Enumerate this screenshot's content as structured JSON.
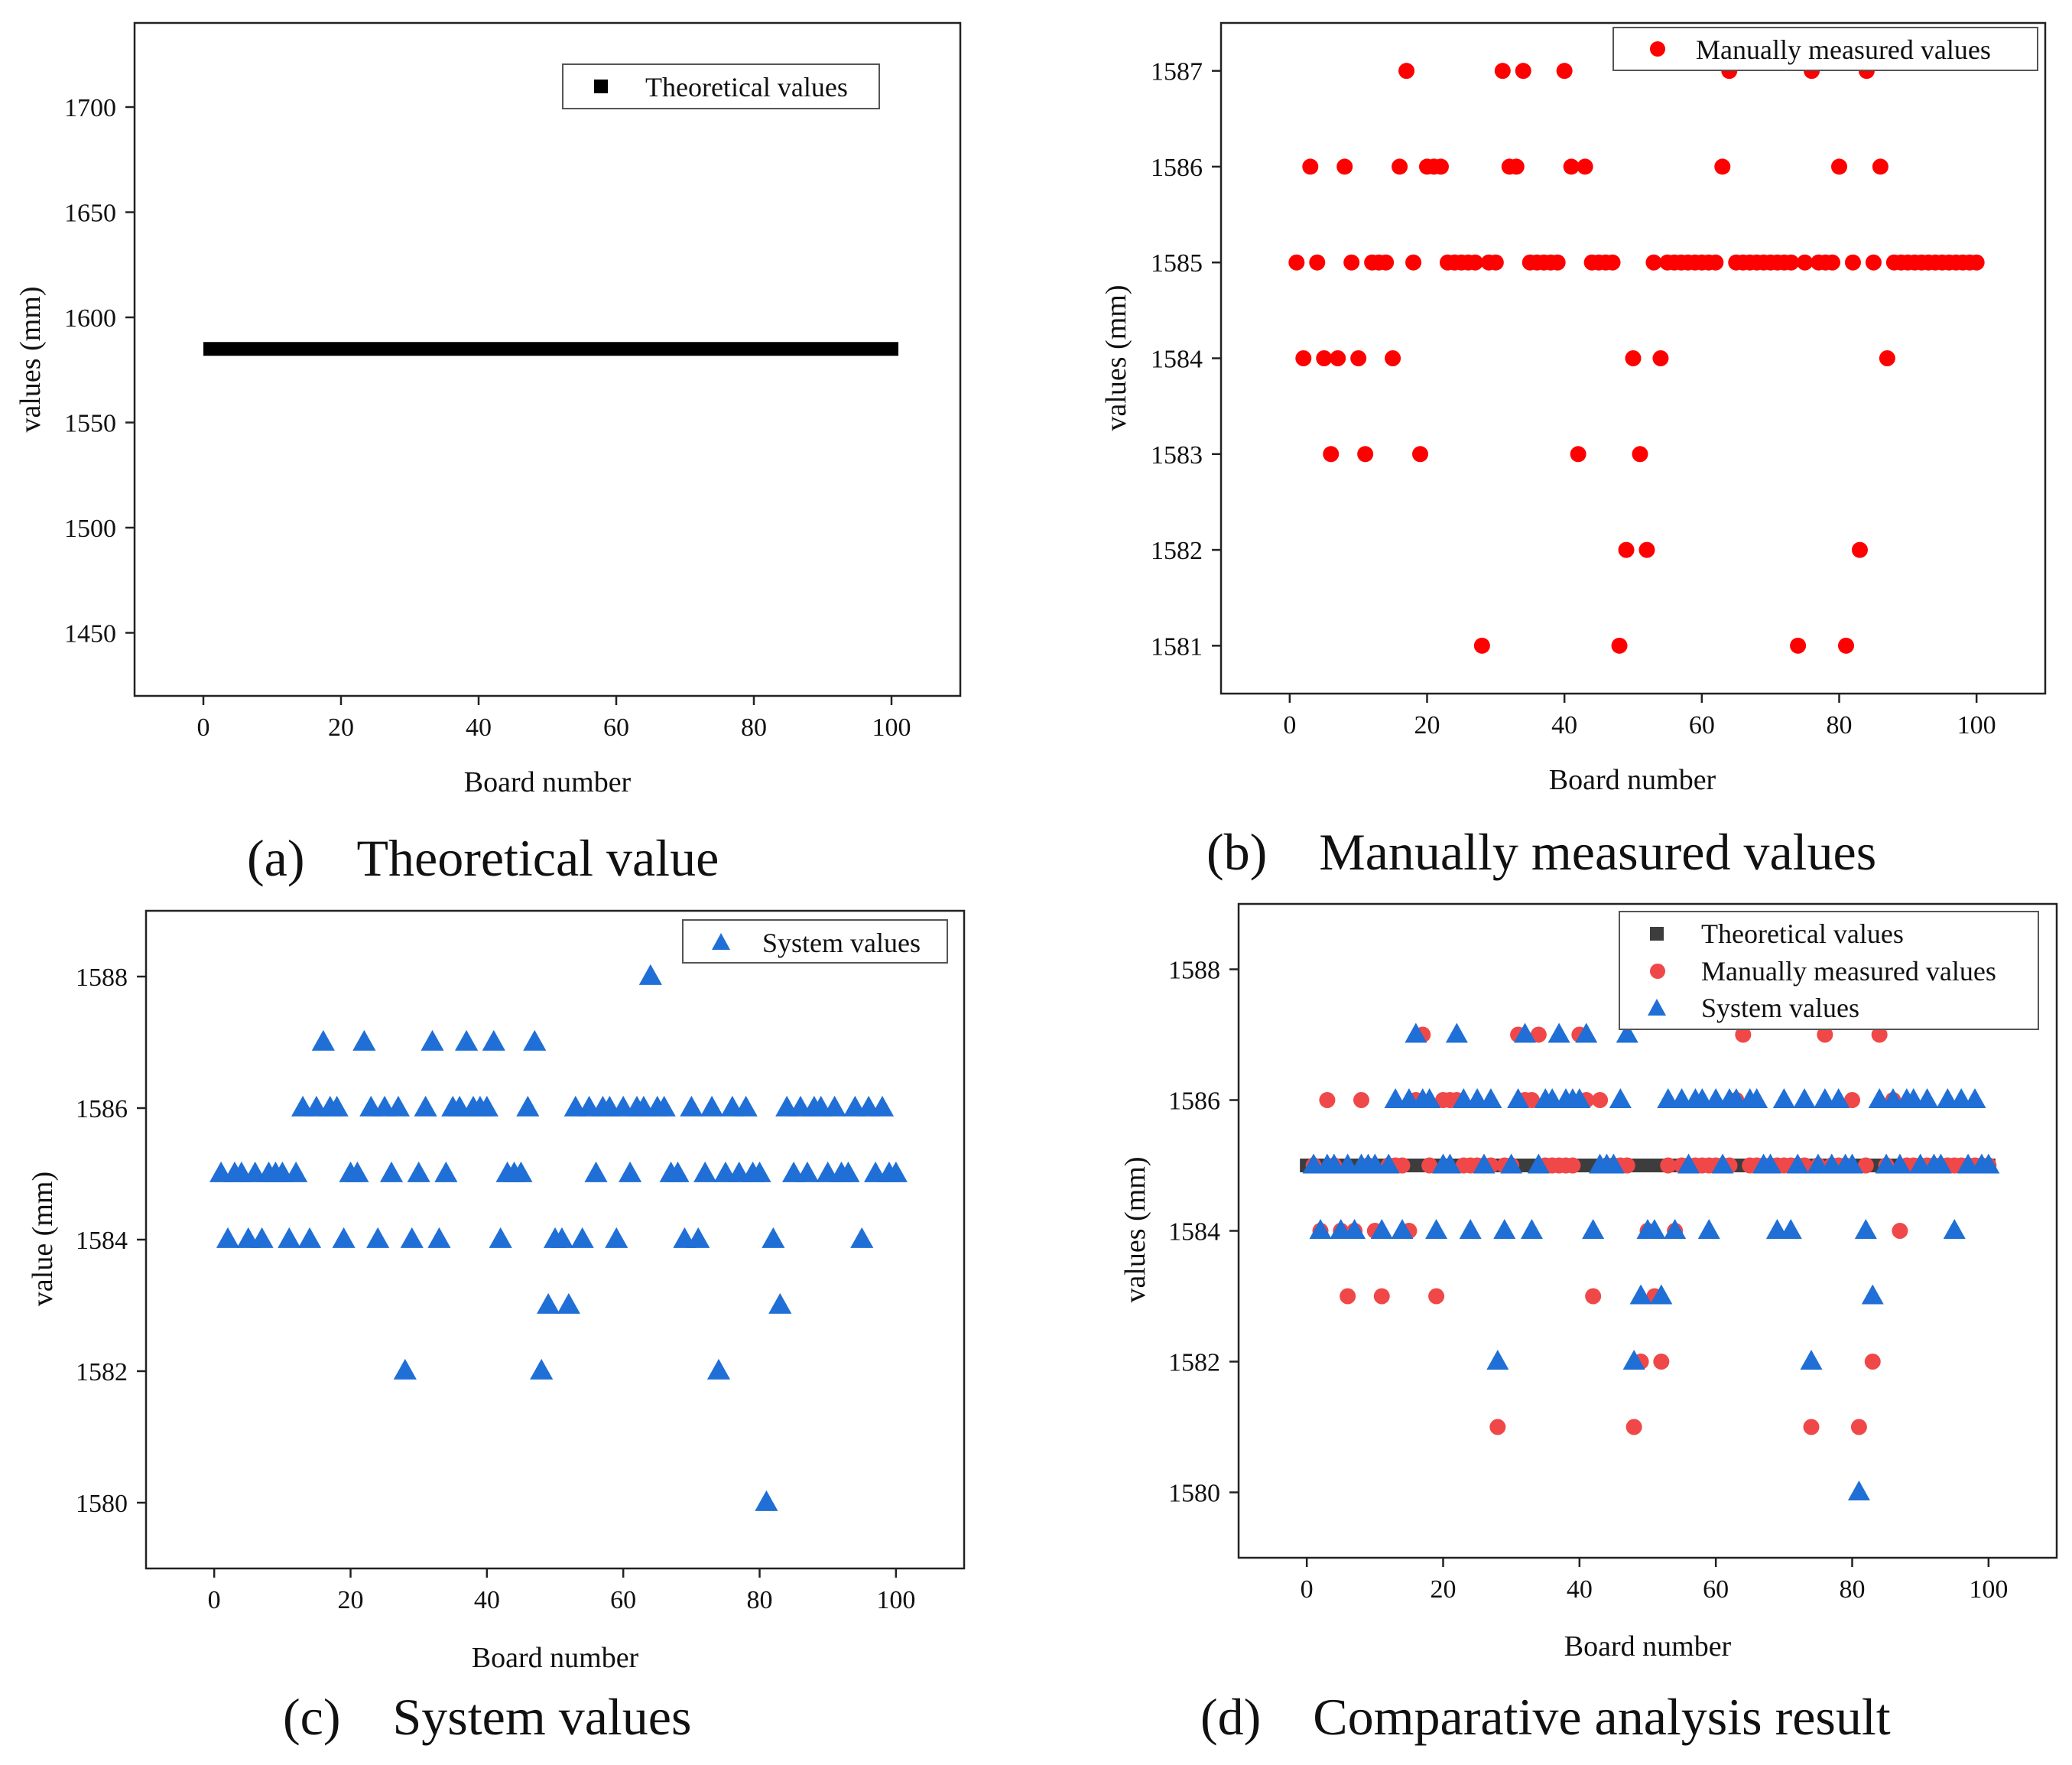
{
  "figure": {
    "panels": [
      {
        "id": "a",
        "caption": "(a) Theoretical value"
      },
      {
        "id": "b",
        "caption": "(b) Manually measured values"
      },
      {
        "id": "c",
        "caption": "(c) System values"
      },
      {
        "id": "d",
        "caption": "(d) Comparative analysis result"
      }
    ]
  },
  "colors": {
    "theoretical": "#000000",
    "theoretical_combined": "#3d3d3d",
    "manual": "#ff0000",
    "manual_combined": "#f04848",
    "system": "#1f6fd6"
  },
  "chart_data": [
    {
      "id": "a",
      "type": "line",
      "title": "",
      "xlabel": "Board number",
      "ylabel": "values (mm)",
      "xlim": [
        -10,
        110
      ],
      "ylim": [
        1420,
        1740
      ],
      "xticks": [
        0,
        20,
        40,
        60,
        80,
        100
      ],
      "yticks": [
        1450,
        1500,
        1550,
        1600,
        1650,
        1700
      ],
      "grid": false,
      "legend_position": "top-right",
      "series": [
        {
          "name": "Theoretical values",
          "marker": "square",
          "color": "#000000",
          "x_start": 0,
          "x_end": 101,
          "value": 1585
        }
      ]
    },
    {
      "id": "b",
      "type": "scatter",
      "title": "",
      "xlabel": "Board number",
      "ylabel": "values (mm)",
      "xlim": [
        -10,
        110
      ],
      "ylim": [
        1580.5,
        1587.5
      ],
      "xticks": [
        0,
        20,
        40,
        60,
        80,
        100
      ],
      "yticks": [
        1581,
        1582,
        1583,
        1584,
        1585,
        1586,
        1587
      ],
      "grid": false,
      "legend_position": "top-right",
      "series": [
        {
          "name": "Manually measured values",
          "marker": "circle",
          "color": "#ff0000",
          "points": [
            [
              1,
              1585
            ],
            [
              2,
              1584
            ],
            [
              3,
              1586
            ],
            [
              4,
              1585
            ],
            [
              5,
              1584
            ],
            [
              6,
              1583
            ],
            [
              7,
              1584
            ],
            [
              8,
              1586
            ],
            [
              9,
              1585
            ],
            [
              10,
              1584
            ],
            [
              11,
              1583
            ],
            [
              12,
              1585
            ],
            [
              13,
              1585
            ],
            [
              14,
              1585
            ],
            [
              15,
              1584
            ],
            [
              16,
              1586
            ],
            [
              17,
              1587
            ],
            [
              18,
              1585
            ],
            [
              19,
              1583
            ],
            [
              20,
              1586
            ],
            [
              21,
              1586
            ],
            [
              22,
              1586
            ],
            [
              23,
              1585
            ],
            [
              24,
              1585
            ],
            [
              25,
              1585
            ],
            [
              26,
              1585
            ],
            [
              27,
              1585
            ],
            [
              28,
              1581
            ],
            [
              29,
              1585
            ],
            [
              30,
              1585
            ],
            [
              31,
              1587
            ],
            [
              32,
              1586
            ],
            [
              33,
              1586
            ],
            [
              34,
              1587
            ],
            [
              35,
              1585
            ],
            [
              36,
              1585
            ],
            [
              37,
              1585
            ],
            [
              38,
              1585
            ],
            [
              39,
              1585
            ],
            [
              40,
              1587
            ],
            [
              41,
              1586
            ],
            [
              42,
              1583
            ],
            [
              43,
              1586
            ],
            [
              44,
              1585
            ],
            [
              45,
              1585
            ],
            [
              46,
              1585
            ],
            [
              47,
              1585
            ],
            [
              48,
              1581
            ],
            [
              49,
              1582
            ],
            [
              50,
              1584
            ],
            [
              51,
              1583
            ],
            [
              52,
              1582
            ],
            [
              53,
              1585
            ],
            [
              54,
              1584
            ],
            [
              55,
              1585
            ],
            [
              56,
              1585
            ],
            [
              57,
              1585
            ],
            [
              58,
              1585
            ],
            [
              59,
              1585
            ],
            [
              60,
              1585
            ],
            [
              61,
              1585
            ],
            [
              62,
              1585
            ],
            [
              63,
              1586
            ],
            [
              64,
              1587
            ],
            [
              65,
              1585
            ],
            [
              66,
              1585
            ],
            [
              67,
              1585
            ],
            [
              68,
              1585
            ],
            [
              69,
              1585
            ],
            [
              70,
              1585
            ],
            [
              71,
              1585
            ],
            [
              72,
              1585
            ],
            [
              73,
              1585
            ],
            [
              74,
              1581
            ],
            [
              75,
              1585
            ],
            [
              76,
              1587
            ],
            [
              77,
              1585
            ],
            [
              78,
              1585
            ],
            [
              79,
              1585
            ],
            [
              80,
              1586
            ],
            [
              81,
              1581
            ],
            [
              82,
              1585
            ],
            [
              83,
              1582
            ],
            [
              84,
              1587
            ],
            [
              85,
              1585
            ],
            [
              86,
              1586
            ],
            [
              87,
              1584
            ],
            [
              88,
              1585
            ],
            [
              89,
              1585
            ],
            [
              90,
              1585
            ],
            [
              91,
              1585
            ],
            [
              92,
              1585
            ],
            [
              93,
              1585
            ],
            [
              94,
              1585
            ],
            [
              95,
              1585
            ],
            [
              96,
              1585
            ],
            [
              97,
              1585
            ],
            [
              98,
              1585
            ],
            [
              99,
              1585
            ],
            [
              100,
              1585
            ]
          ]
        }
      ]
    },
    {
      "id": "c",
      "type": "scatter",
      "title": "",
      "xlabel": "Board number",
      "ylabel": "value (mm)",
      "xlim": [
        -10,
        110
      ],
      "ylim": [
        1579,
        1589
      ],
      "xticks": [
        0,
        20,
        40,
        60,
        80,
        100
      ],
      "yticks": [
        1580,
        1582,
        1584,
        1586,
        1588
      ],
      "grid": false,
      "legend_position": "top-right",
      "series": [
        {
          "name": "System values",
          "marker": "triangle",
          "color": "#1f6fd6",
          "points": [
            [
              1,
              1585
            ],
            [
              2,
              1584
            ],
            [
              3,
              1585
            ],
            [
              4,
              1585
            ],
            [
              5,
              1584
            ],
            [
              6,
              1585
            ],
            [
              7,
              1584
            ],
            [
              8,
              1585
            ],
            [
              9,
              1585
            ],
            [
              10,
              1585
            ],
            [
              11,
              1584
            ],
            [
              12,
              1585
            ],
            [
              13,
              1586
            ],
            [
              14,
              1584
            ],
            [
              15,
              1586
            ],
            [
              16,
              1587
            ],
            [
              17,
              1586
            ],
            [
              18,
              1586
            ],
            [
              19,
              1584
            ],
            [
              20,
              1585
            ],
            [
              21,
              1585
            ],
            [
              22,
              1587
            ],
            [
              23,
              1586
            ],
            [
              24,
              1584
            ],
            [
              25,
              1586
            ],
            [
              26,
              1585
            ],
            [
              27,
              1586
            ],
            [
              28,
              1582
            ],
            [
              29,
              1584
            ],
            [
              30,
              1585
            ],
            [
              31,
              1586
            ],
            [
              32,
              1587
            ],
            [
              33,
              1584
            ],
            [
              34,
              1585
            ],
            [
              35,
              1586
            ],
            [
              36,
              1586
            ],
            [
              37,
              1587
            ],
            [
              38,
              1586
            ],
            [
              39,
              1586
            ],
            [
              40,
              1586
            ],
            [
              41,
              1587
            ],
            [
              42,
              1584
            ],
            [
              43,
              1585
            ],
            [
              44,
              1585
            ],
            [
              45,
              1585
            ],
            [
              46,
              1586
            ],
            [
              47,
              1587
            ],
            [
              48,
              1582
            ],
            [
              49,
              1583
            ],
            [
              50,
              1584
            ],
            [
              51,
              1584
            ],
            [
              52,
              1583
            ],
            [
              53,
              1586
            ],
            [
              54,
              1584
            ],
            [
              55,
              1586
            ],
            [
              56,
              1585
            ],
            [
              57,
              1586
            ],
            [
              58,
              1586
            ],
            [
              59,
              1584
            ],
            [
              60,
              1586
            ],
            [
              61,
              1585
            ],
            [
              62,
              1586
            ],
            [
              63,
              1586
            ],
            [
              64,
              1588
            ],
            [
              65,
              1586
            ],
            [
              66,
              1586
            ],
            [
              67,
              1585
            ],
            [
              68,
              1585
            ],
            [
              69,
              1584
            ],
            [
              70,
              1586
            ],
            [
              71,
              1584
            ],
            [
              72,
              1585
            ],
            [
              73,
              1586
            ],
            [
              74,
              1582
            ],
            [
              75,
              1585
            ],
            [
              76,
              1586
            ],
            [
              77,
              1585
            ],
            [
              78,
              1586
            ],
            [
              79,
              1585
            ],
            [
              80,
              1585
            ],
            [
              81,
              1580
            ],
            [
              82,
              1584
            ],
            [
              83,
              1583
            ],
            [
              84,
              1586
            ],
            [
              85,
              1585
            ],
            [
              86,
              1586
            ],
            [
              87,
              1585
            ],
            [
              88,
              1586
            ],
            [
              89,
              1586
            ],
            [
              90,
              1585
            ],
            [
              91,
              1586
            ],
            [
              92,
              1585
            ],
            [
              93,
              1585
            ],
            [
              94,
              1586
            ],
            [
              95,
              1584
            ],
            [
              96,
              1586
            ],
            [
              97,
              1585
            ],
            [
              98,
              1586
            ],
            [
              99,
              1585
            ],
            [
              100,
              1585
            ]
          ]
        }
      ]
    },
    {
      "id": "d",
      "type": "scatter",
      "title": "",
      "xlabel": "Board number",
      "ylabel": "values (mm)",
      "xlim": [
        -10,
        110
      ],
      "ylim": [
        1579,
        1589
      ],
      "xticks": [
        0,
        20,
        40,
        60,
        80,
        100
      ],
      "yticks": [
        1580,
        1582,
        1584,
        1586,
        1588
      ],
      "grid": false,
      "legend_position": "top-right",
      "series": [
        {
          "name": "Theoretical values",
          "marker": "square",
          "color": "#3d3d3d",
          "ref": "theoretical"
        },
        {
          "name": "Manually measured values",
          "marker": "circle",
          "color": "#f04848",
          "ref": "manual"
        },
        {
          "name": "System values",
          "marker": "triangle",
          "color": "#1f6fd6",
          "ref": "system"
        }
      ]
    }
  ]
}
